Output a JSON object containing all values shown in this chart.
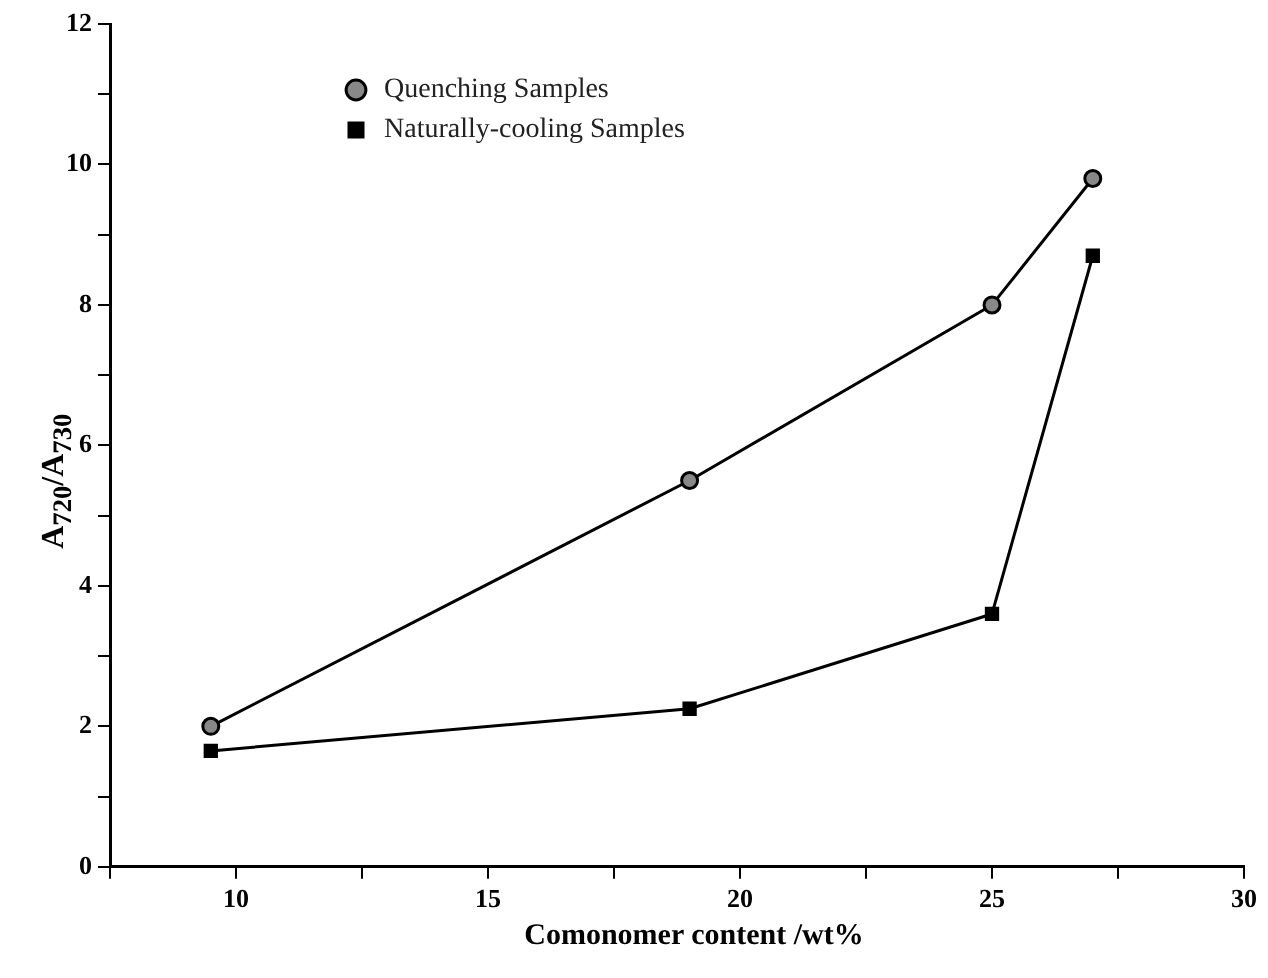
{
  "chart_data": {
    "type": "line",
    "xlabel": "Comonomer content /wt%",
    "ylabel": "A$_{720}$/A$_{730}$",
    "xlim": [
      7.5,
      30
    ],
    "xticks": [
      {
        "value": 7.5,
        "label": null
      },
      10,
      {
        "value": 12.5,
        "label": null
      },
      15,
      {
        "value": 17.5,
        "label": null
      },
      20,
      {
        "value": 22.5,
        "label": null
      },
      25,
      {
        "value": 27.5,
        "label": null
      },
      30
    ],
    "ylim": [
      0,
      12
    ],
    "yticks": [
      0,
      {
        "value": 1,
        "label": null
      },
      2,
      {
        "value": 3,
        "label": null
      },
      4,
      {
        "value": 5,
        "label": null
      },
      6,
      {
        "value": 7,
        "label": null
      },
      8,
      {
        "value": 9,
        "label": null
      },
      10,
      {
        "value": 11,
        "label": null
      },
      12
    ],
    "x": [
      9.5,
      19,
      25,
      27
    ],
    "series": [
      {
        "name": "Quenching Samples",
        "color": "#000000",
        "marker": "circle",
        "values": [
          2.0,
          5.5,
          8.0,
          9.8
        ]
      },
      {
        "name": "Naturally-cooling Samples",
        "color": "#000000",
        "marker": "square",
        "values": [
          1.65,
          2.25,
          3.6,
          8.7
        ]
      }
    ],
    "legend": "top left",
    "grid": false,
    "line_style": "solid"
  }
}
